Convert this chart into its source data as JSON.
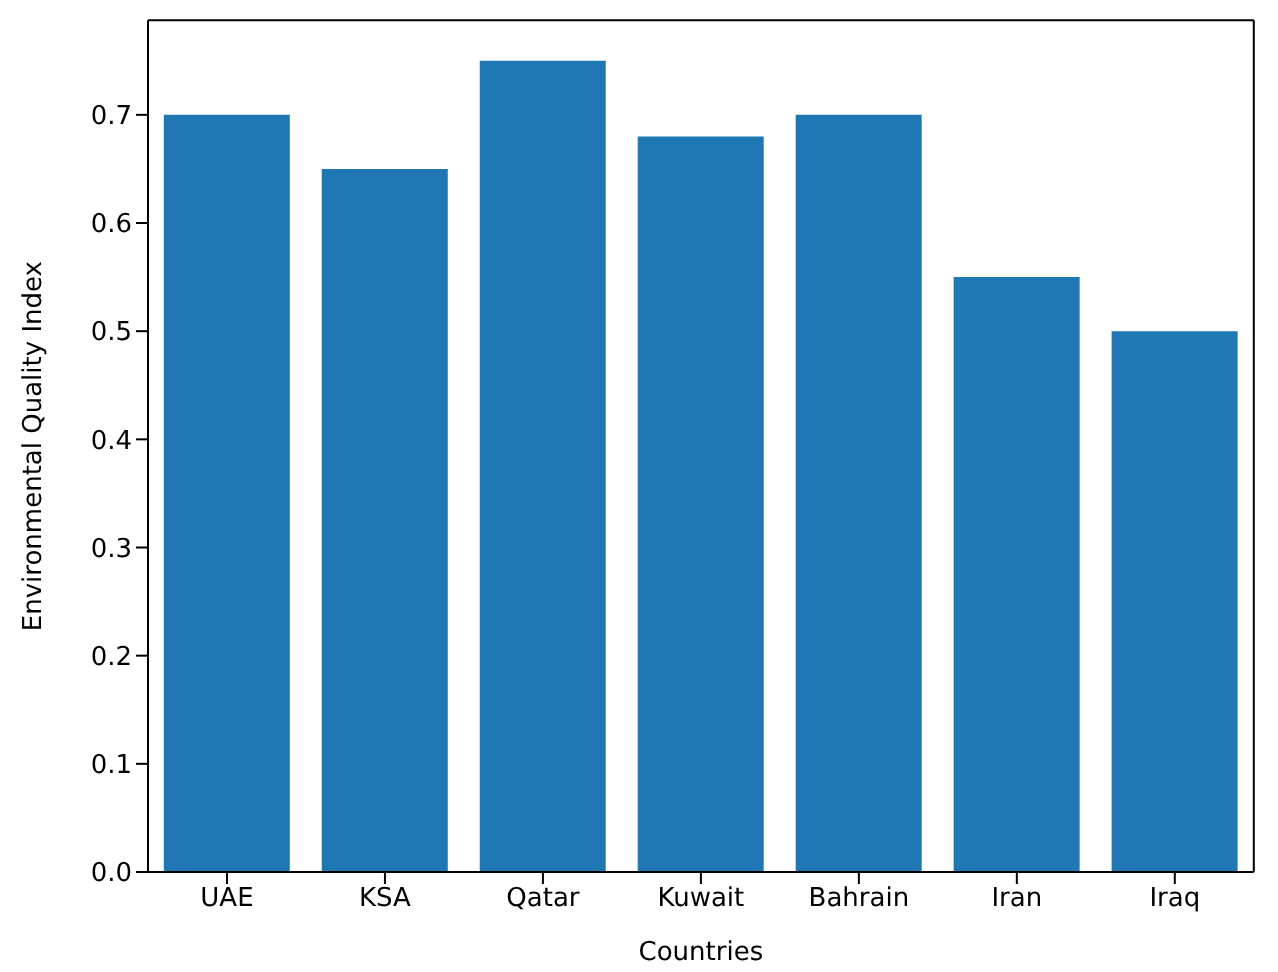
{
  "chart_data": {
    "type": "bar",
    "xlabel": "Countries",
    "ylabel": "Environmental Quality Index",
    "categories": [
      "UAE",
      "KSA",
      "Qatar",
      "Kuwait",
      "Bahrain",
      "Iran",
      "Iraq"
    ],
    "values": [
      0.7,
      0.65,
      0.75,
      0.68,
      0.7,
      0.55,
      0.5
    ],
    "color": "#1f77b4",
    "ylim": [
      0,
      0.7875
    ],
    "yticks": [
      {
        "value": 0,
        "label": "0.0"
      },
      0.1,
      0.2,
      0.3,
      0.4,
      0.5,
      0.6,
      0.7
    ]
  }
}
